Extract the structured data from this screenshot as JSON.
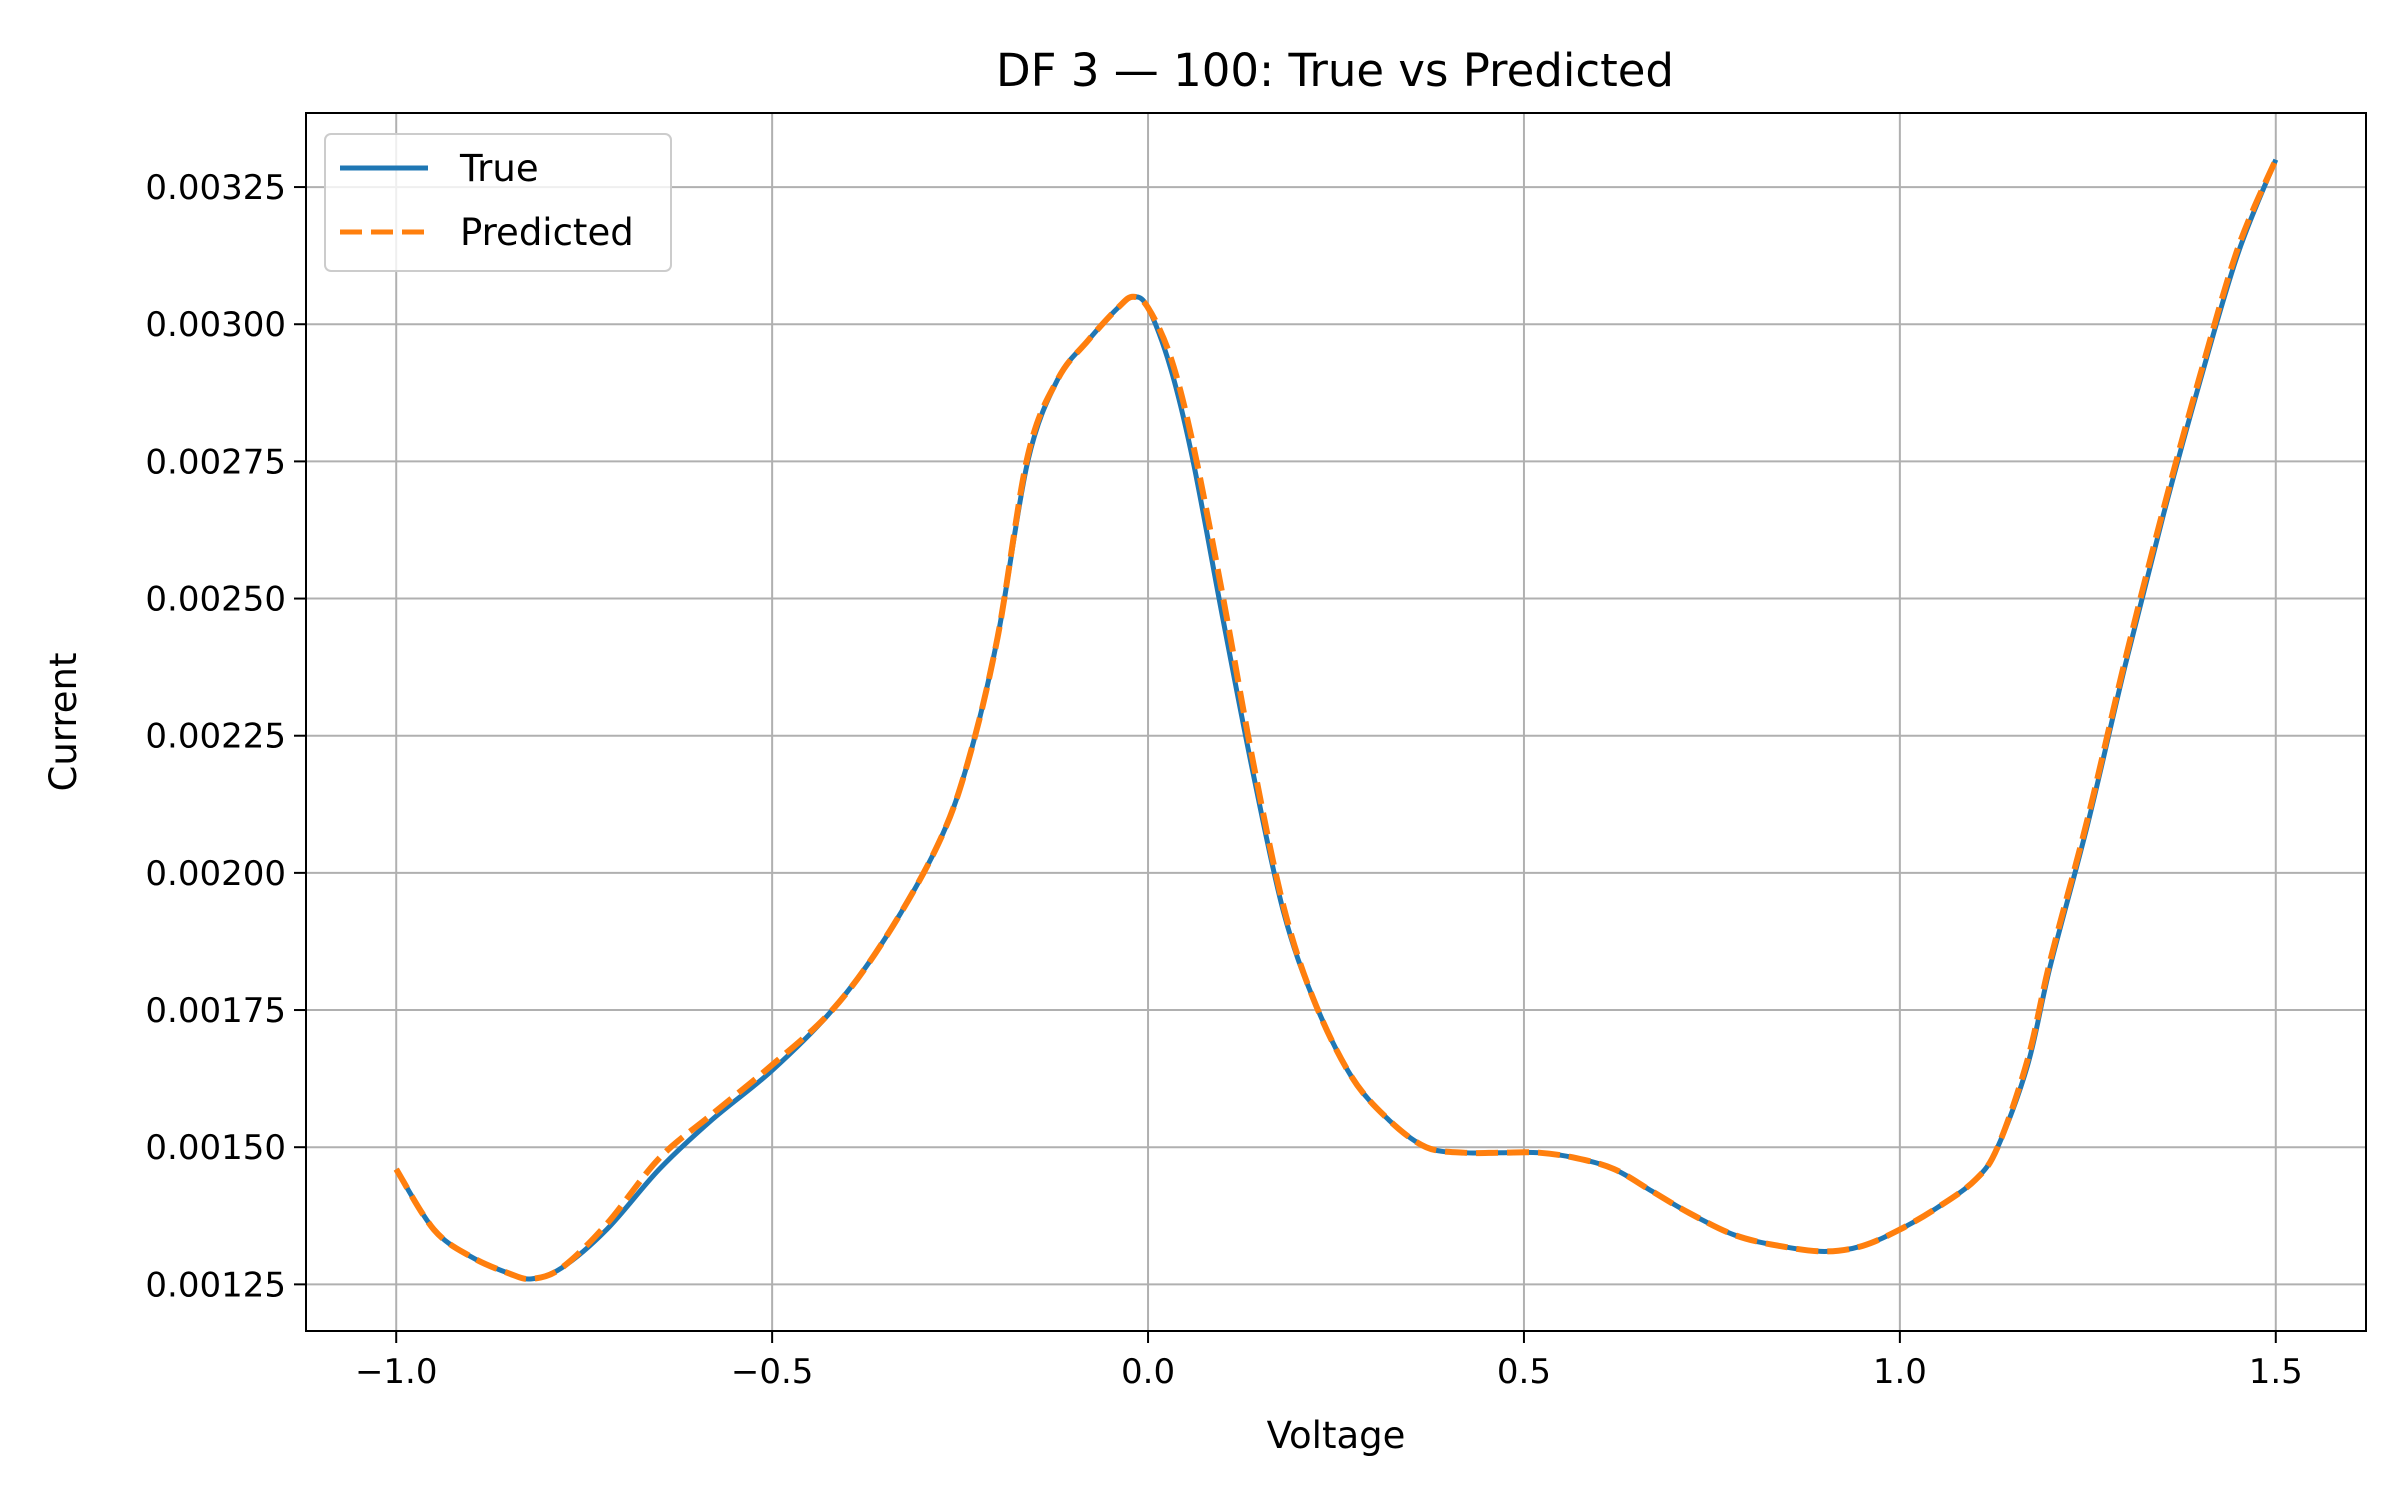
{
  "chart_data": {
    "type": "line",
    "title": "DF 3 — 100: True vs Predicted",
    "xlabel": "Voltage",
    "ylabel": "Current",
    "xlim": [
      -1.12,
      1.62
    ],
    "ylim": [
      0.001165,
      0.003385
    ],
    "xticks": [
      -1.0,
      -0.5,
      0.0,
      0.5,
      1.0,
      1.5
    ],
    "xtick_labels": [
      "−1.0",
      "−0.5",
      "0.0",
      "0.5",
      "1.0",
      "1.5"
    ],
    "yticks": [
      0.00125,
      0.0015,
      0.00175,
      0.002,
      0.00225,
      0.0025,
      0.00275,
      0.003,
      0.00325
    ],
    "ytick_labels": [
      "0.00125",
      "0.00150",
      "0.00175",
      "0.00200",
      "0.00225",
      "0.00250",
      "0.00275",
      "0.00300",
      "0.00325"
    ],
    "grid": true,
    "legend_position": "top-left",
    "series": [
      {
        "name": "True",
        "color": "#1f77b4",
        "style": "solid",
        "x": [
          -1.0,
          -0.95,
          -0.9,
          -0.85,
          -0.82,
          -0.78,
          -0.72,
          -0.65,
          -0.58,
          -0.5,
          -0.42,
          -0.35,
          -0.28,
          -0.24,
          -0.2,
          -0.16,
          -0.12,
          -0.08,
          -0.04,
          -0.02,
          0.0,
          0.03,
          0.06,
          0.1,
          0.14,
          0.18,
          0.22,
          0.27,
          0.32,
          0.37,
          0.42,
          0.47,
          0.52,
          0.57,
          0.62,
          0.67,
          0.72,
          0.78,
          0.84,
          0.9,
          0.95,
          1.0,
          1.05,
          1.1,
          1.13,
          1.17,
          1.2,
          1.25,
          1.3,
          1.35,
          1.4,
          1.45,
          1.5
        ],
        "y": [
          0.00146,
          0.00135,
          0.0013,
          0.00127,
          0.00126,
          0.00128,
          0.00135,
          0.00146,
          0.00155,
          0.00164,
          0.00175,
          0.00188,
          0.00205,
          0.0022,
          0.00243,
          0.00275,
          0.0029,
          0.00297,
          0.00303,
          0.00305,
          0.00303,
          0.00292,
          0.00275,
          0.00246,
          0.00218,
          0.00193,
          0.00177,
          0.00163,
          0.00155,
          0.0015,
          0.00149,
          0.00149,
          0.00149,
          0.00148,
          0.00146,
          0.00142,
          0.00138,
          0.00134,
          0.00132,
          0.00131,
          0.00132,
          0.00135,
          0.00139,
          0.00144,
          0.0015,
          0.00165,
          0.00183,
          0.00209,
          0.00238,
          0.00265,
          0.0029,
          0.00313,
          0.0033
        ]
      },
      {
        "name": "Predicted",
        "color": "#ff7f0e",
        "style": "dashed",
        "x": [
          -1.0,
          -0.95,
          -0.9,
          -0.85,
          -0.82,
          -0.78,
          -0.72,
          -0.65,
          -0.58,
          -0.5,
          -0.42,
          -0.35,
          -0.28,
          -0.24,
          -0.2,
          -0.16,
          -0.12,
          -0.08,
          -0.04,
          -0.02,
          0.0,
          0.03,
          0.06,
          0.1,
          0.14,
          0.18,
          0.22,
          0.27,
          0.32,
          0.37,
          0.42,
          0.47,
          0.52,
          0.57,
          0.62,
          0.67,
          0.72,
          0.78,
          0.84,
          0.9,
          0.95,
          1.0,
          1.05,
          1.1,
          1.13,
          1.17,
          1.2,
          1.25,
          1.3,
          1.35,
          1.4,
          1.45,
          1.5
        ],
        "y": [
          0.00146,
          0.00135,
          0.0013,
          0.00127,
          0.00126,
          0.00128,
          0.00136,
          0.00148,
          0.00156,
          0.00165,
          0.00175,
          0.00188,
          0.00205,
          0.0022,
          0.00243,
          0.00276,
          0.0029,
          0.00297,
          0.00303,
          0.00305,
          0.00303,
          0.00294,
          0.00278,
          0.0025,
          0.0022,
          0.00194,
          0.00177,
          0.00163,
          0.00155,
          0.0015,
          0.00149,
          0.00149,
          0.00149,
          0.00148,
          0.00146,
          0.00142,
          0.00138,
          0.00134,
          0.00132,
          0.00131,
          0.00132,
          0.00135,
          0.00139,
          0.00144,
          0.0015,
          0.00166,
          0.00184,
          0.0021,
          0.00239,
          0.00266,
          0.00291,
          0.00314,
          0.0033
        ]
      }
    ]
  }
}
